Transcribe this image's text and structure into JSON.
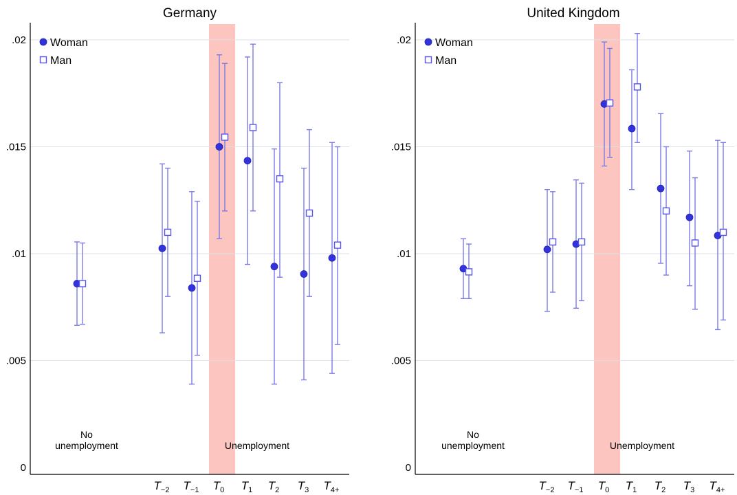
{
  "chart_data": [
    {
      "type": "scatter",
      "title": "Germany",
      "xlabel": "",
      "ylabel": "",
      "ylim": [
        0,
        0.02
      ],
      "yticks": [
        {
          "value": 0,
          "label": "0"
        },
        {
          "value": 0.005,
          "label": ".005"
        },
        {
          "value": 0.01,
          "label": ".01"
        },
        {
          "value": 0.015,
          "label": ".015"
        },
        {
          "value": 0.02,
          "label": ".02"
        }
      ],
      "categories": [
        {
          "id": "none",
          "main": "",
          "sub": ""
        },
        {
          "id": "t-2",
          "main": "T",
          "sub": "−2"
        },
        {
          "id": "t-1",
          "main": "T",
          "sub": "−1"
        },
        {
          "id": "t0",
          "main": "T",
          "sub": "0"
        },
        {
          "id": "t1",
          "main": "T",
          "sub": "1"
        },
        {
          "id": "t2",
          "main": "T",
          "sub": "2"
        },
        {
          "id": "t3",
          "main": "T",
          "sub": "3"
        },
        {
          "id": "t4",
          "main": "T",
          "sub": "4+"
        }
      ],
      "highlight_category": "t0",
      "annotations": [
        {
          "text": "No",
          "anchor": "none",
          "line": 0
        },
        {
          "text": "unemployment",
          "anchor": "none",
          "line": 1
        },
        {
          "text": "Unemployment",
          "anchor": "t0",
          "line": 1
        }
      ],
      "grid": true,
      "legend": "top-left",
      "series": [
        {
          "name": "Woman",
          "marker": "filled-circle",
          "values": [
            0.0086,
            0.01025,
            0.0084,
            0.015,
            0.01435,
            0.0094,
            0.00905,
            0.0098
          ],
          "ci_low": [
            0.00665,
            0.0063,
            0.0039,
            0.0107,
            0.0095,
            0.0039,
            0.0041,
            0.0044
          ],
          "ci_high": [
            0.01055,
            0.0142,
            0.0129,
            0.0193,
            0.0192,
            0.0149,
            0.014,
            0.0152
          ]
        },
        {
          "name": "Man",
          "marker": "hollow-square",
          "values": [
            0.0086,
            0.011,
            0.00885,
            0.01545,
            0.0159,
            0.0135,
            0.0119,
            0.0104
          ],
          "ci_low": [
            0.0067,
            0.008,
            0.00525,
            0.012,
            0.012,
            0.0089,
            0.008,
            0.00575
          ],
          "ci_high": [
            0.0105,
            0.014,
            0.01245,
            0.0189,
            0.0198,
            0.018,
            0.0158,
            0.015
          ]
        }
      ]
    },
    {
      "type": "scatter",
      "title": "United Kingdom",
      "xlabel": "",
      "ylabel": "",
      "ylim": [
        0,
        0.02
      ],
      "yticks": [
        {
          "value": 0,
          "label": "0"
        },
        {
          "value": 0.005,
          "label": ".005"
        },
        {
          "value": 0.01,
          "label": ".01"
        },
        {
          "value": 0.015,
          "label": ".015"
        },
        {
          "value": 0.02,
          "label": ".02"
        }
      ],
      "categories": [
        {
          "id": "none",
          "main": "",
          "sub": ""
        },
        {
          "id": "t-2",
          "main": "T",
          "sub": "−2"
        },
        {
          "id": "t-1",
          "main": "T",
          "sub": "−1"
        },
        {
          "id": "t0",
          "main": "T",
          "sub": "0"
        },
        {
          "id": "t1",
          "main": "T",
          "sub": "1"
        },
        {
          "id": "t2",
          "main": "T",
          "sub": "2"
        },
        {
          "id": "t3",
          "main": "T",
          "sub": "3"
        },
        {
          "id": "t4",
          "main": "T",
          "sub": "4+"
        }
      ],
      "highlight_category": "t0",
      "annotations": [
        {
          "text": "No",
          "anchor": "none",
          "line": 0
        },
        {
          "text": "unemployment",
          "anchor": "none",
          "line": 1
        },
        {
          "text": "Unemployment",
          "anchor": "t0",
          "line": 1
        }
      ],
      "grid": true,
      "legend": "top-left",
      "series": [
        {
          "name": "Woman",
          "marker": "filled-circle",
          "values": [
            0.0093,
            0.0102,
            0.01045,
            0.017,
            0.01585,
            0.01305,
            0.0117,
            0.01085
          ],
          "ci_low": [
            0.0079,
            0.0073,
            0.00745,
            0.0141,
            0.013,
            0.00955,
            0.0085,
            0.00645
          ],
          "ci_high": [
            0.0107,
            0.013,
            0.01345,
            0.0199,
            0.0186,
            0.01655,
            0.0148,
            0.0153
          ]
        },
        {
          "name": "Man",
          "marker": "hollow-square",
          "values": [
            0.00915,
            0.01055,
            0.01055,
            0.01705,
            0.0178,
            0.012,
            0.0105,
            0.011
          ],
          "ci_low": [
            0.0079,
            0.0082,
            0.0078,
            0.0145,
            0.0152,
            0.009,
            0.0074,
            0.0069
          ],
          "ci_high": [
            0.01045,
            0.0129,
            0.0133,
            0.0196,
            0.0203,
            0.015,
            0.01355,
            0.0152
          ]
        }
      ]
    }
  ],
  "colors": {
    "marker": "#3333dd",
    "errorbar": "#7b7be6",
    "square": "#5555ee",
    "highlight": "#fcc5c0",
    "grid": "#d8e2e6",
    "axis": "#000000"
  }
}
